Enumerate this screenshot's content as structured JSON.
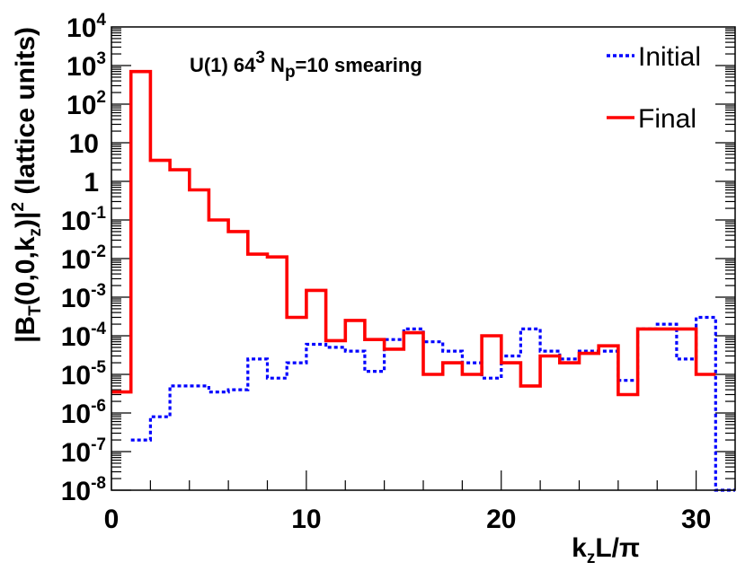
{
  "chart_data": {
    "type": "step-histogram",
    "annotation": {
      "prefix": "U(1) 64",
      "prefix_sup": "3",
      "mid": " N",
      "mid_sub": "p",
      "suffix": "=10 smearing"
    },
    "xlabel": {
      "main": "k",
      "sub": "z",
      "rest": "L/π"
    },
    "ylabel": {
      "p1": "|B",
      "p1_sub": "T",
      "p2": "(0,0,k",
      "p2_sub": "z",
      "p3": ")|",
      "p3_sup": "2",
      "p4": " (lattice units)"
    },
    "xlim": [
      0,
      32
    ],
    "ylim_log10": [
      -8,
      4
    ],
    "y_scale": "log",
    "x_ticks": [
      "0",
      "10",
      "20",
      "30"
    ],
    "x_tick_values": [
      0,
      10,
      20,
      30
    ],
    "y_ticks": [
      {
        "base": "10",
        "exp": "4",
        "value": 4
      },
      {
        "base": "10",
        "exp": "3",
        "value": 3
      },
      {
        "base": "10",
        "exp": "2",
        "value": 2
      },
      {
        "base": "10",
        "exp": "",
        "value": 1
      },
      {
        "base": "1",
        "exp": "",
        "value": 0
      },
      {
        "base": "10",
        "exp": "-1",
        "value": -1
      },
      {
        "base": "10",
        "exp": "-2",
        "value": -2
      },
      {
        "base": "10",
        "exp": "-3",
        "value": -3
      },
      {
        "base": "10",
        "exp": "-4",
        "value": -4
      },
      {
        "base": "10",
        "exp": "-5",
        "value": -5
      },
      {
        "base": "10",
        "exp": "-6",
        "value": -6
      },
      {
        "base": "10",
        "exp": "-7",
        "value": -7
      },
      {
        "base": "10",
        "exp": "-8",
        "value": -8
      }
    ],
    "legend": {
      "position": "top-right"
    },
    "series": [
      {
        "name": "Initial",
        "color": "#0000ff",
        "dash": "dotted",
        "bin_edges": [
          1,
          2,
          3,
          4,
          5,
          6,
          7,
          8,
          9,
          10,
          11,
          12,
          13,
          14,
          15,
          16,
          17,
          18,
          19,
          20,
          21,
          22,
          23,
          24,
          25,
          26,
          27,
          28,
          29,
          30,
          31,
          32
        ],
        "values": [
          2e-07,
          8e-07,
          5e-06,
          5e-06,
          3.5e-06,
          4e-06,
          2.5e-05,
          8e-06,
          2e-05,
          6e-05,
          5e-05,
          4e-05,
          1.2e-05,
          8e-05,
          0.00015,
          7e-05,
          4e-05,
          2e-05,
          8e-06,
          3e-05,
          0.00015,
          4e-05,
          2.5e-05,
          4e-05,
          4e-05,
          7e-06,
          0.00015,
          0.0002,
          2.5e-05,
          0.0003,
          1e-08
        ]
      },
      {
        "name": "Final",
        "color": "#ff0000",
        "dash": "solid",
        "bin_edges": [
          0,
          1,
          2,
          3,
          4,
          5,
          6,
          7,
          8,
          9,
          10,
          11,
          12,
          13,
          14,
          15,
          16,
          17,
          18,
          19,
          20,
          21,
          22,
          23,
          24,
          25,
          26,
          27,
          28,
          29,
          30,
          31
        ],
        "values": [
          3.5e-06,
          700,
          3.5,
          2,
          0.6,
          0.1,
          0.05,
          0.013,
          0.011,
          0.0003,
          0.0015,
          7.5e-05,
          0.00025,
          8e-05,
          4.5e-05,
          0.00012,
          1e-05,
          2e-05,
          1e-05,
          0.0001,
          2e-05,
          5e-06,
          3e-05,
          2e-05,
          3.5e-05,
          5.5e-05,
          3e-06,
          0.00015,
          0.00015,
          0.00015,
          1e-05
        ]
      }
    ]
  }
}
